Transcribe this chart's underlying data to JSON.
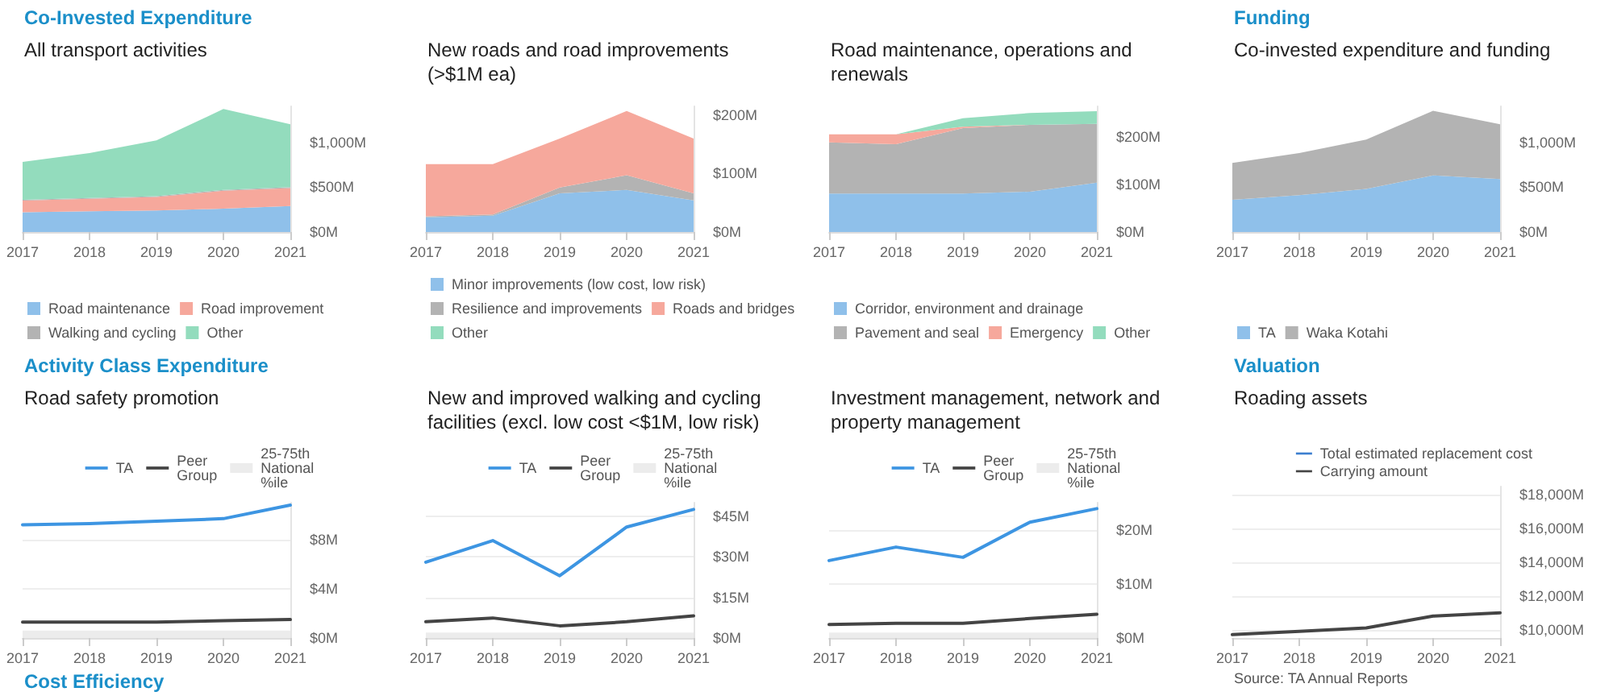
{
  "chart_data": [
    {
      "type": "area",
      "stacked": true,
      "title": "All transport activities",
      "annotations": [
        "Co-Invested Expenditure"
      ],
      "categories": [
        "2017",
        "2018",
        "2019",
        "2020",
        "2021"
      ],
      "legend": "bottom",
      "ylim": [
        0,
        1400
      ],
      "yticks": [
        {
          "value": 0,
          "label": "$0M"
        },
        {
          "value": 500,
          "label": "$500M"
        },
        {
          "value": 1000,
          "label": "$1,000M"
        }
      ],
      "series": [
        {
          "name": "Road maintenance",
          "color": "#8fc0ea",
          "values": [
            220,
            230,
            240,
            260,
            290
          ]
        },
        {
          "name": "Road improvement",
          "color": "#f6a89c",
          "values": [
            130,
            140,
            150,
            200,
            200
          ]
        },
        {
          "name": "Walking and cycling",
          "color": "#b3b3b3",
          "values": [
            10,
            10,
            10,
            10,
            10
          ]
        },
        {
          "name": "Other",
          "color": "#93dcbd",
          "values": [
            420,
            500,
            620,
            900,
            700
          ]
        }
      ]
    },
    {
      "type": "area",
      "stacked": true,
      "title": "New roads and road improvements (>$1M ea)",
      "categories": [
        "2017",
        "2018",
        "2019",
        "2020",
        "2021"
      ],
      "legend": "bottom",
      "ylim": [
        0,
        215
      ],
      "yticks": [
        {
          "value": 0,
          "label": "$0M"
        },
        {
          "value": 100,
          "label": "$100M"
        },
        {
          "value": 200,
          "label": "$200M"
        }
      ],
      "series": [
        {
          "name": "Minor improvements (low cost, low risk)",
          "color": "#8fc0ea",
          "values": [
            25,
            28,
            66,
            72,
            54
          ]
        },
        {
          "name": "Resilience and improvements",
          "color": "#b3b3b3",
          "values": [
            2,
            2,
            10,
            25,
            12
          ]
        },
        {
          "name": "Roads and bridges",
          "color": "#f6a89c",
          "values": [
            89,
            86,
            84,
            110,
            94
          ]
        },
        {
          "name": "Other",
          "color": "#93dcbd",
          "values": [
            null,
            null,
            null,
            null,
            null
          ]
        }
      ]
    },
    {
      "type": "area",
      "stacked": true,
      "title": "Road maintenance, operations and renewals",
      "categories": [
        "2017",
        "2018",
        "2019",
        "2020",
        "2021"
      ],
      "legend": "bottom",
      "ylim": [
        0,
        265
      ],
      "yticks": [
        {
          "value": 0,
          "label": "$0M"
        },
        {
          "value": 100,
          "label": "$100M"
        },
        {
          "value": 200,
          "label": "$200M"
        }
      ],
      "series": [
        {
          "name": "Corridor, environment and drainage",
          "color": "#8fc0ea",
          "values": [
            81,
            81,
            81,
            85,
            104
          ]
        },
        {
          "name": "Pavement and seal",
          "color": "#b3b3b3",
          "values": [
            108,
            104,
            138,
            141,
            124
          ]
        },
        {
          "name": "Emergency",
          "color": "#f6a89c",
          "values": [
            17,
            21,
            3,
            0,
            0
          ]
        },
        {
          "name": "Other",
          "color": "#93dcbd",
          "values": [
            0,
            0,
            18,
            25,
            27
          ]
        }
      ]
    },
    {
      "type": "area",
      "stacked": true,
      "title": "Co-invested expenditure and funding",
      "annotations": [
        "Funding"
      ],
      "categories": [
        "2017",
        "2018",
        "2019",
        "2020",
        "2021"
      ],
      "legend": "bottom",
      "ylim": [
        0,
        1400
      ],
      "yticks": [
        {
          "value": 0,
          "label": "$0M"
        },
        {
          "value": 500,
          "label": "$500M"
        },
        {
          "value": 1000,
          "label": "$1,000M"
        }
      ],
      "series": [
        {
          "name": "TA",
          "color": "#8fc0ea",
          "values": [
            360,
            410,
            480,
            630,
            590
          ]
        },
        {
          "name": "Waka Kotahi",
          "color": "#b3b3b3",
          "values": [
            410,
            470,
            550,
            720,
            610
          ]
        }
      ]
    },
    {
      "type": "line",
      "title": "Road safety promotion",
      "annotations": [
        "Activity Class Expenditure",
        "Cost Efficiency"
      ],
      "categories": [
        "2017",
        "2018",
        "2019",
        "2020",
        "2021"
      ],
      "legend": "top",
      "grid": "y",
      "ylim": [
        0,
        11
      ],
      "yticks": [
        {
          "value": 0,
          "label": "$0M"
        },
        {
          "value": 4,
          "label": "$4M"
        },
        {
          "value": 8,
          "label": "$8M"
        }
      ],
      "series": [
        {
          "name": "TA",
          "color": "#3d95e2",
          "values": [
            9.2,
            9.3,
            9.5,
            9.7,
            10.8
          ]
        },
        {
          "name": "Peer Group",
          "color": "#444444",
          "values": [
            1.3,
            1.3,
            1.3,
            1.4,
            1.5
          ]
        },
        {
          "name": "25-75th National %ile",
          "color": "#ececec",
          "type": "area",
          "values": [
            0.6,
            0.6,
            0.6,
            0.6,
            0.6
          ]
        }
      ]
    },
    {
      "type": "line",
      "title": "New and improved walking and cycling facilities (excl. low cost <$1M, low risk)",
      "categories": [
        "2017",
        "2018",
        "2019",
        "2020",
        "2021"
      ],
      "legend": "top",
      "grid": "y",
      "ylim": [
        0,
        50
      ],
      "yticks": [
        {
          "value": 0,
          "label": "$0M"
        },
        {
          "value": 15,
          "label": "$15M"
        },
        {
          "value": 30,
          "label": "$30M"
        },
        {
          "value": 45,
          "label": "$45M"
        }
      ],
      "series": [
        {
          "name": "TA",
          "color": "#3d95e2",
          "values": [
            28,
            36,
            23,
            41,
            47.5
          ]
        },
        {
          "name": "Peer Group",
          "color": "#444444",
          "values": [
            6,
            7.4,
            4.5,
            6,
            8.2
          ]
        },
        {
          "name": "25-75th National %ile",
          "color": "#ececec",
          "type": "area",
          "values": [
            2,
            2,
            2,
            2,
            2
          ]
        }
      ]
    },
    {
      "type": "line",
      "title": "Investment management, network and property management",
      "categories": [
        "2017",
        "2018",
        "2019",
        "2020",
        "2021"
      ],
      "legend": "top",
      "grid": "y",
      "ylim": [
        0,
        25
      ],
      "yticks": [
        {
          "value": 0,
          "label": "$0M"
        },
        {
          "value": 10,
          "label": "$10M"
        },
        {
          "value": 20,
          "label": "$20M"
        }
      ],
      "series": [
        {
          "name": "TA",
          "color": "#3d95e2",
          "values": [
            14.3,
            16.8,
            14.9,
            21.4,
            23.9
          ]
        },
        {
          "name": "Peer Group",
          "color": "#444444",
          "values": [
            2.5,
            2.7,
            2.7,
            3.6,
            4.4
          ]
        },
        {
          "name": "25-75th National %ile",
          "color": "#ececec",
          "type": "area",
          "values": [
            1,
            1,
            1,
            1,
            1
          ]
        }
      ]
    },
    {
      "type": "line",
      "title": "Roading assets",
      "annotations": [
        "Valuation",
        "Source: TA Annual Reports"
      ],
      "categories": [
        "2017",
        "2018",
        "2019",
        "2020",
        "2021"
      ],
      "legend": "top right",
      "grid": "y",
      "ylim": [
        9500,
        18500
      ],
      "yticks": [
        {
          "value": 10000,
          "label": "$10,000M"
        },
        {
          "value": 12000,
          "label": "$12,000M"
        },
        {
          "value": 14000,
          "label": "$14,000M"
        },
        {
          "value": 16000,
          "label": "$16,000M"
        },
        {
          "value": 18000,
          "label": "$18,000M"
        }
      ],
      "series": [
        {
          "name": "Total estimated replacement cost",
          "color": "#3d7fd0",
          "values": [
            null,
            null,
            null,
            null,
            null
          ]
        },
        {
          "name": "Carrying amount",
          "color": "#444444",
          "values": [
            9700,
            9900,
            10100,
            10800,
            11000
          ]
        }
      ]
    }
  ]
}
